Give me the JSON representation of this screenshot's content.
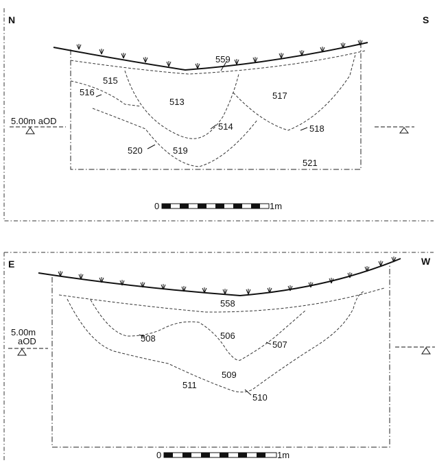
{
  "section1": {
    "north_label": "N",
    "south_label": "S",
    "datum_label": "5.00m aOD",
    "context_labels": [
      "559",
      "515",
      "516",
      "513",
      "517",
      "514",
      "518",
      "520",
      "519",
      "521"
    ],
    "scale": {
      "start": "0",
      "end": "1m"
    }
  },
  "section2": {
    "east_label": "E",
    "west_label": "W",
    "datum_line1": "5.00m",
    "datum_line2": "aOD",
    "context_labels": [
      "558",
      "508",
      "506",
      "507",
      "509",
      "511",
      "510"
    ],
    "scale": {
      "start": "0",
      "end": "1m"
    }
  }
}
